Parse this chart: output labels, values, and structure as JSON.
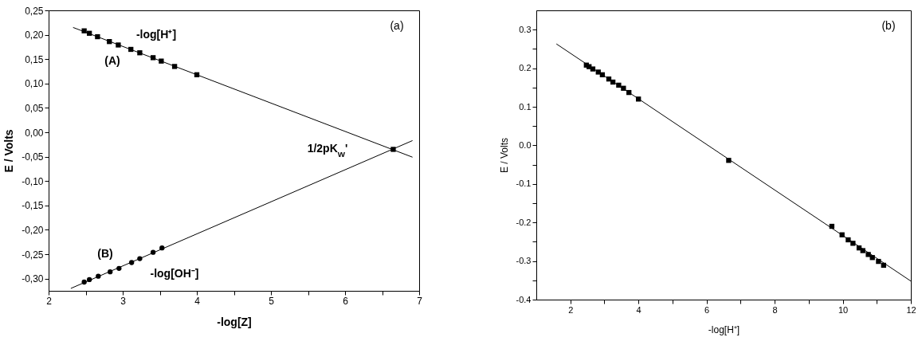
{
  "chart_data": [
    {
      "type": "scatter",
      "xlabel": "-log[Z]",
      "ylabel": "E / Volts",
      "xlim": [
        2,
        7
      ],
      "ylim": [
        -0.325,
        0.25
      ],
      "xticks": [
        2,
        {
          "value": 2.5,
          "label": null
        },
        3,
        {
          "value": 3.5,
          "label": null
        },
        4,
        {
          "value": 4.5,
          "label": null
        },
        5,
        {
          "value": 5.5,
          "label": null
        },
        6,
        {
          "value": 6.5,
          "label": null
        },
        7
      ],
      "yticks": [
        {
          "value": 0.25,
          "label": "0,25"
        },
        {
          "value": 0.2,
          "label": "0,20"
        },
        {
          "value": 0.15,
          "label": "0,15"
        },
        {
          "value": 0.1,
          "label": "0,10"
        },
        {
          "value": 0.05,
          "label": "0,05"
        },
        {
          "value": 0,
          "label": "0,00"
        },
        {
          "value": -0.05,
          "label": "-0,05"
        },
        {
          "value": -0.1,
          "label": "-0,10"
        },
        {
          "value": -0.15,
          "label": "-0,15"
        },
        {
          "value": -0.2,
          "label": "-0,20"
        },
        {
          "value": -0.25,
          "label": "-0,25"
        },
        {
          "value": -0.3,
          "label": "-0,30"
        }
      ],
      "grid": false,
      "series": [
        {
          "type": "scatter",
          "marker": "square",
          "color": "#000000",
          "x": [
            2.48,
            2.55,
            2.66,
            2.82,
            2.94,
            3.11,
            3.23,
            3.41,
            3.52,
            3.7,
            4.0
          ],
          "values": [
            0.208,
            0.203,
            0.196,
            0.186,
            0.179,
            0.17,
            0.163,
            0.153,
            0.146,
            0.135,
            0.118
          ]
        },
        {
          "type": "scatter",
          "marker": "circle",
          "color": "#000000",
          "x": [
            2.48,
            2.55,
            2.67,
            2.83,
            2.95,
            3.12,
            3.23,
            3.41,
            3.53
          ],
          "values": [
            -0.307,
            -0.302,
            -0.295,
            -0.286,
            -0.279,
            -0.267,
            -0.259,
            -0.246,
            -0.237
          ]
        },
        {
          "type": "scatter",
          "marker": "square",
          "color": "#000000",
          "x": [
            6.65
          ],
          "values": [
            -0.035
          ]
        },
        {
          "type": "line",
          "color": "#000000",
          "x": [
            2.33,
            6.91
          ],
          "values": [
            0.215,
            -0.051
          ]
        },
        {
          "type": "line",
          "color": "#000000",
          "x": [
            2.3,
            6.91
          ],
          "values": [
            -0.32,
            -0.017
          ]
        }
      ],
      "annotations": [
        "-log[H⁺]",
        "(A)",
        "(B)",
        "-log[OH⁻]",
        "1/2pK$_{W}$'",
        "(a)"
      ]
    },
    {
      "type": "scatter",
      "xlabel": "-log[H⁺]",
      "ylabel": "E / Volts",
      "xlim": [
        1,
        12
      ],
      "ylim": [
        -0.4,
        0.35
      ],
      "xticks": [
        2,
        {
          "value": 3,
          "label": null
        },
        4,
        {
          "value": 5,
          "label": null
        },
        6,
        {
          "value": 7,
          "label": null
        },
        8,
        {
          "value": 9,
          "label": null
        },
        10,
        {
          "value": 11,
          "label": null
        },
        12
      ],
      "yticks": [
        {
          "value": -0.4,
          "label": "-0.4"
        },
        {
          "value": -0.35,
          "label": null
        },
        {
          "value": -0.3,
          "label": "-0.3"
        },
        {
          "value": -0.25,
          "label": null
        },
        {
          "value": -0.2,
          "label": "-0.2"
        },
        {
          "value": -0.15,
          "label": null
        },
        {
          "value": -0.1,
          "label": "-0.1"
        },
        {
          "value": -0.05,
          "label": null
        },
        {
          "value": 0,
          "label": "0.0"
        },
        {
          "value": 0.05,
          "label": null
        },
        {
          "value": 0.1,
          "label": "0.1"
        },
        {
          "value": 0.15,
          "label": null
        },
        {
          "value": 0.2,
          "label": "0.2"
        },
        {
          "value": 0.25,
          "label": null
        },
        {
          "value": 0.3,
          "label": "0.3"
        }
      ],
      "grid": false,
      "series": [
        {
          "type": "scatter",
          "marker": "square",
          "color": "#000000",
          "x": [
            2.47,
            2.55,
            2.66,
            2.82,
            2.94,
            3.13,
            3.25,
            3.42,
            3.56,
            3.72,
            4.0,
            6.65,
            9.68,
            9.98,
            10.16,
            10.3,
            10.48,
            10.59,
            10.75,
            10.87,
            11.05,
            11.2
          ],
          "values": [
            0.208,
            0.204,
            0.198,
            0.19,
            0.183,
            0.172,
            0.164,
            0.156,
            0.148,
            0.137,
            0.12,
            -0.039,
            -0.21,
            -0.232,
            -0.245,
            -0.254,
            -0.266,
            -0.273,
            -0.283,
            -0.291,
            -0.301,
            -0.311
          ]
        },
        {
          "type": "line",
          "color": "#000000",
          "x": [
            1.59,
            12
          ],
          "values": [
            0.263,
            -0.352
          ]
        }
      ],
      "annotations": [
        "(b)"
      ]
    }
  ]
}
